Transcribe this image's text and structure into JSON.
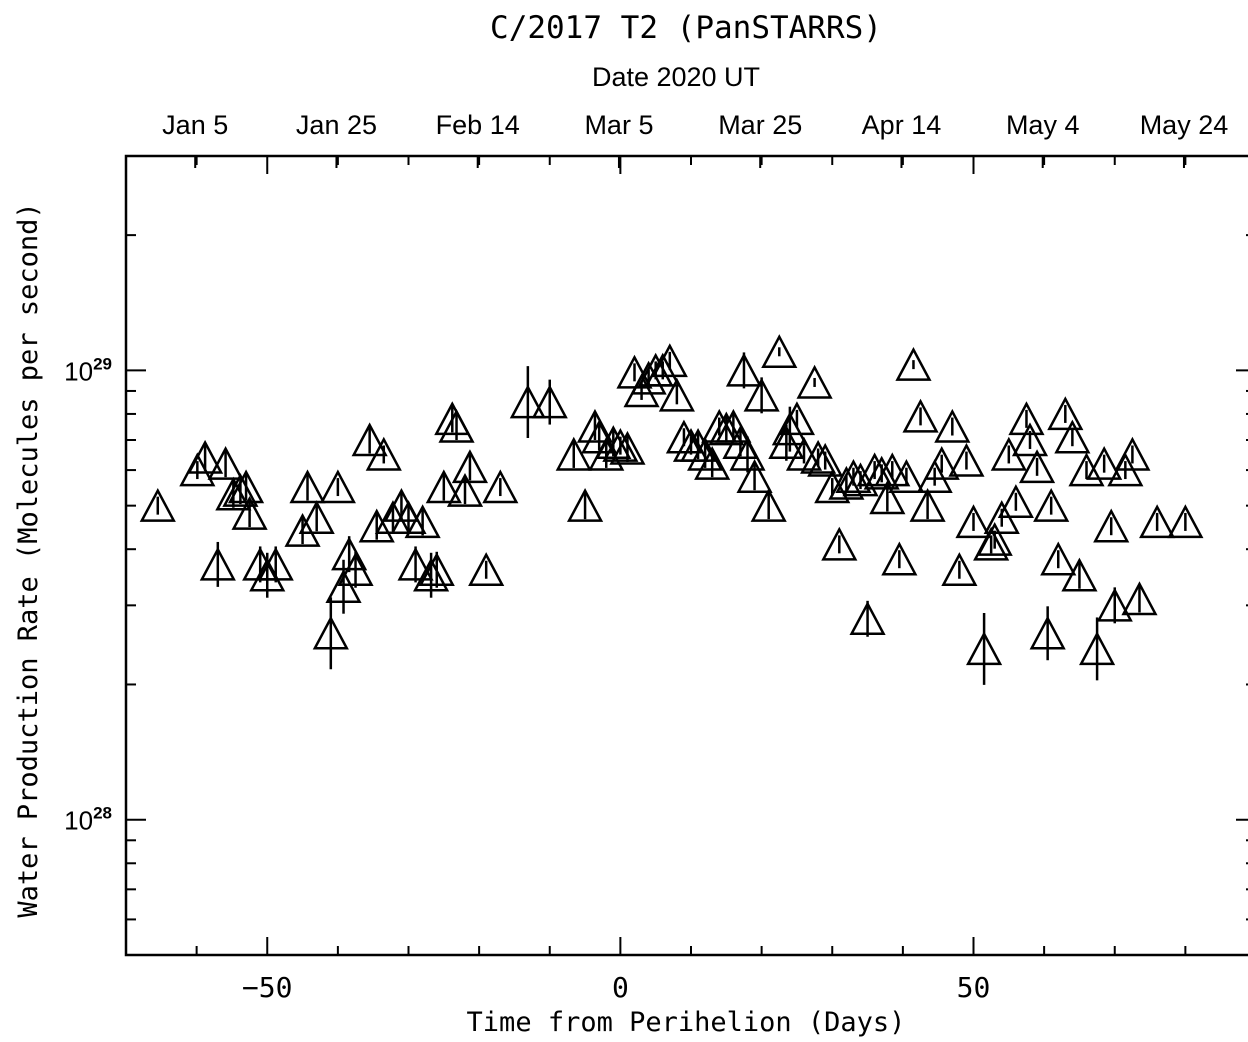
{
  "chart_data": {
    "type": "scatter",
    "title": "C/2017 T2 (PanSTARRS)",
    "xlabel": "Time from Perihelion (Days)",
    "ylabel": "Water Production Rate (Molecules per second)",
    "top_axis_label": "Date 2020 UT",
    "xlim": [
      -70,
      90
    ],
    "ylim": [
      5e+27,
      3e+29
    ],
    "yscale": "log",
    "x_ticks": [
      {
        "value": -50,
        "label": "−50"
      },
      {
        "value": 0,
        "label": "0"
      },
      {
        "value": 50,
        "label": "50"
      }
    ],
    "y_ticks": [
      {
        "value": 1e+28,
        "base": "10",
        "exp": "28"
      },
      {
        "value": 1e+29,
        "base": "10",
        "exp": "29"
      }
    ],
    "top_ticks": [
      {
        "value": -60.2,
        "label": "Jan 5"
      },
      {
        "value": -40.2,
        "label": "Jan 25"
      },
      {
        "value": -20.2,
        "label": "Feb 14"
      },
      {
        "value": -0.2,
        "label": "Mar 5"
      },
      {
        "value": 19.8,
        "label": "Mar 25"
      },
      {
        "value": 39.8,
        "label": "Apr 14"
      },
      {
        "value": 59.8,
        "label": "May 4"
      },
      {
        "value": 79.8,
        "label": "May 24"
      }
    ],
    "grid": false,
    "marker": "triangle",
    "points": [
      [
        -65.5,
        5e+28,
        0.02
      ],
      [
        -59.9,
        6e+28,
        0.02
      ],
      [
        -58.8,
        6.4e+28,
        0.03
      ],
      [
        -57.0,
        3.7e+28,
        0.05
      ],
      [
        -55.9,
        6.2e+28,
        0.03
      ],
      [
        -54.8,
        5.3e+28,
        0.03
      ],
      [
        -53.8,
        5.4e+28,
        0.03
      ],
      [
        -53.0,
        5.5e+28,
        0.03
      ],
      [
        -52.5,
        4.8e+28,
        0.03
      ],
      [
        -51.0,
        3.7e+28,
        0.04
      ],
      [
        -50.0,
        3.5e+28,
        0.05
      ],
      [
        -48.8,
        3.7e+28,
        0.04
      ],
      [
        -45.0,
        4.4e+28,
        0.03
      ],
      [
        -44.3,
        5.5e+28,
        0.03
      ],
      [
        -43.0,
        4.7e+28,
        0.03
      ],
      [
        -41.0,
        2.6e+28,
        0.08
      ],
      [
        -40.0,
        5.5e+28,
        0.02
      ],
      [
        -39.2,
        3.3e+28,
        0.06
      ],
      [
        -38.4,
        3.9e+28,
        0.04
      ],
      [
        -37.5,
        3.6e+28,
        0.04
      ],
      [
        -35.5,
        7e+28,
        0.03
      ],
      [
        -34.5,
        4.5e+28,
        0.03
      ],
      [
        -33.5,
        6.5e+28,
        0.02
      ],
      [
        -32.2,
        4.7e+28,
        0.03
      ],
      [
        -31.0,
        5e+28,
        0.03
      ],
      [
        -30.0,
        4.7e+28,
        0.03
      ],
      [
        -29.0,
        3.7e+28,
        0.04
      ],
      [
        -28.0,
        4.6e+28,
        0.03
      ],
      [
        -26.8,
        3.5e+28,
        0.05
      ],
      [
        -26.0,
        3.6e+28,
        0.04
      ],
      [
        -25.0,
        5.5e+28,
        0.03
      ],
      [
        -23.8,
        7.8e+28,
        0.03
      ],
      [
        -23.2,
        7.5e+28,
        0.03
      ],
      [
        -22.0,
        5.4e+28,
        0.03
      ],
      [
        -21.3,
        6.1e+28,
        0.03
      ],
      [
        -19.0,
        3.6e+28,
        0.02
      ],
      [
        -17.0,
        5.5e+28,
        0.02
      ],
      [
        -13.1,
        8.5e+28,
        0.08
      ],
      [
        -10.0,
        8.5e+28,
        0.05
      ],
      [
        -6.6,
        6.5e+28,
        0.03
      ],
      [
        -5.0,
        5e+28,
        0.03
      ],
      [
        -3.6,
        7.5e+28,
        0.03
      ],
      [
        -3.0,
        7.1e+28,
        0.03
      ],
      [
        -2.0,
        6.5e+28,
        0.03
      ],
      [
        -1.0,
        6.9e+28,
        0.03
      ],
      [
        0.0,
        6.8e+28,
        0.02
      ],
      [
        1.0,
        6.7e+28,
        0.03
      ],
      [
        2.0,
        9.9e+28,
        0.02
      ],
      [
        3.0,
        9e+28,
        0.02
      ],
      [
        4.0,
        9.6e+28,
        0.02
      ],
      [
        5.0,
        1e+29,
        0.02
      ],
      [
        6.0,
        1e+29,
        0.02
      ],
      [
        7.0,
        1.05e+29,
        0.02
      ],
      [
        8.0,
        8.8e+28,
        0.02
      ],
      [
        9.0,
        7.1e+28,
        0.02
      ],
      [
        10.0,
        6.8e+28,
        0.02
      ],
      [
        11.0,
        6.8e+28,
        0.03
      ],
      [
        12.0,
        6.5e+28,
        0.03
      ],
      [
        13.0,
        6.2e+28,
        0.03
      ],
      [
        14.0,
        7.5e+28,
        0.02
      ],
      [
        15.0,
        7.4e+28,
        0.03
      ],
      [
        16.0,
        7.5e+28,
        0.03
      ],
      [
        17.0,
        6.9e+28,
        0.03
      ],
      [
        17.5,
        1e+29,
        0.04
      ],
      [
        18.0,
        6.5e+28,
        0.04
      ],
      [
        19.0,
        5.8e+28,
        0.03
      ],
      [
        20.0,
        8.8e+28,
        0.04
      ],
      [
        21.0,
        5e+28,
        0.03
      ],
      [
        22.5,
        1.1e+29,
        0.01
      ],
      [
        23.5,
        6.9e+28,
        0.04
      ],
      [
        24.0,
        7.4e+28,
        0.05
      ],
      [
        25.0,
        7.8e+28,
        0.02
      ],
      [
        26.0,
        6.5e+28,
        0.02
      ],
      [
        27.5,
        9.4e+28,
        0.01
      ],
      [
        28.0,
        6.4e+28,
        0.02
      ],
      [
        29.0,
        6.3e+28,
        0.02
      ],
      [
        30.0,
        5.5e+28,
        0.02
      ],
      [
        31.0,
        4.1e+28,
        0.02
      ],
      [
        32.0,
        5.6e+28,
        0.02
      ],
      [
        33.0,
        5.8e+28,
        0.02
      ],
      [
        34.0,
        5.7e+28,
        0.02
      ],
      [
        35.0,
        2.8e+28,
        0.04
      ],
      [
        36.0,
        6e+28,
        0.02
      ],
      [
        37.0,
        5.9e+28,
        0.02
      ],
      [
        37.8,
        5.2e+28,
        0.03
      ],
      [
        38.5,
        6e+28,
        0.02
      ],
      [
        39.5,
        3.8e+28,
        0.02
      ],
      [
        40.5,
        5.8e+28,
        0.02
      ],
      [
        41.5,
        1.03e+29,
        0.01
      ],
      [
        42.5,
        7.9e+28,
        0.02
      ],
      [
        43.5,
        5e+28,
        0.03
      ],
      [
        44.5,
        5.8e+28,
        0.02
      ],
      [
        45.5,
        6.2e+28,
        0.02
      ],
      [
        47.0,
        7.5e+28,
        0.02
      ],
      [
        48.0,
        3.6e+28,
        0.02
      ],
      [
        49.0,
        6.3e+28,
        0.02
      ],
      [
        50.0,
        4.6e+28,
        0.02
      ],
      [
        51.5,
        2.4e+28,
        0.08
      ],
      [
        52.5,
        4.1e+28,
        0.02
      ],
      [
        53.0,
        4.2e+28,
        0.02
      ],
      [
        54.0,
        4.7e+28,
        0.02
      ],
      [
        55.0,
        6.5e+28,
        0.02
      ],
      [
        56.0,
        5.1e+28,
        0.02
      ],
      [
        57.5,
        7.8e+28,
        0.02
      ],
      [
        58.0,
        7e+28,
        0.02
      ],
      [
        59.0,
        6.1e+28,
        0.02
      ],
      [
        60.5,
        2.6e+28,
        0.06
      ],
      [
        61.0,
        5e+28,
        0.02
      ],
      [
        62.0,
        3.8e+28,
        0.02
      ],
      [
        63.0,
        8e+28,
        0.02
      ],
      [
        64.0,
        7.1e+28,
        0.02
      ],
      [
        65.0,
        3.5e+28,
        0.03
      ],
      [
        66.0,
        6e+28,
        0.02
      ],
      [
        67.5,
        2.4e+28,
        0.07
      ],
      [
        68.5,
        6.2e+28,
        0.02
      ],
      [
        69.5,
        4.5e+28,
        0.02
      ],
      [
        70.0,
        3e+28,
        0.04
      ],
      [
        71.5,
        6e+28,
        0.02
      ],
      [
        72.5,
        6.5e+28,
        0.02
      ],
      [
        73.5,
        3.1e+28,
        0.03
      ],
      [
        76.0,
        4.6e+28,
        0.02
      ],
      [
        80.0,
        4.6e+28,
        0.02
      ]
    ]
  }
}
